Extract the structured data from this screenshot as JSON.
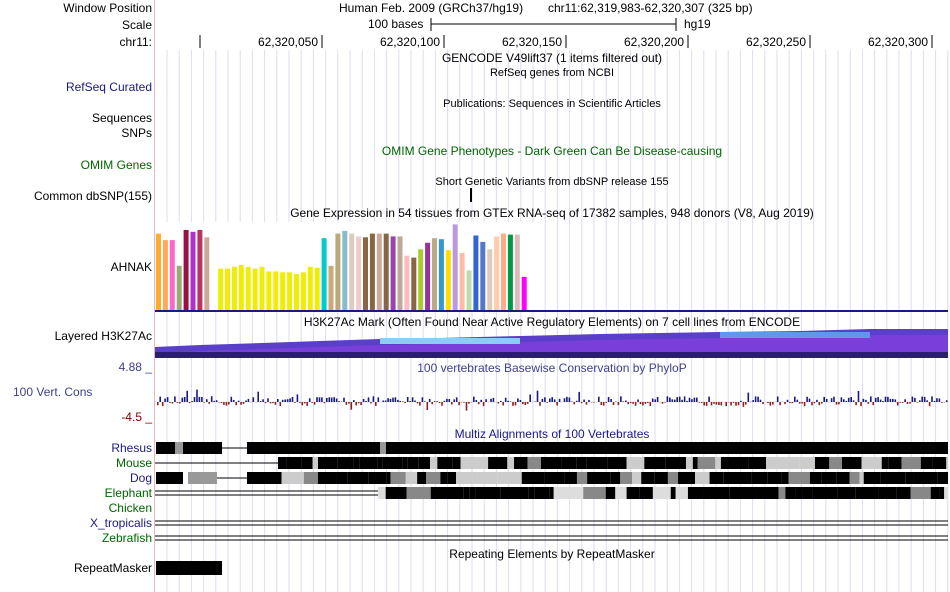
{
  "header": {
    "window_position_label": "Window Position",
    "assembly": "Human Feb. 2009 (GRCh37/hg19)",
    "position": "chr11:62,319,983-62,320,307 (325 bp)",
    "scale_label": "Scale",
    "scale_value": "100 bases",
    "scale_db": "hg19",
    "chrom_label": "chr11:",
    "ticks": [
      "62,320,050",
      "62,320,100",
      "62,320,150",
      "62,320,200",
      "62,320,250",
      "62,320,300"
    ]
  },
  "tracks": {
    "gencode": {
      "title": "GENCODE V49lift37 (1 items filtered out)"
    },
    "refseq": {
      "label": "RefSeq Curated",
      "title": "RefSeq genes from NCBI"
    },
    "publications": {
      "title": "Publications: Sequences in Scientific Articles"
    },
    "sequences": {
      "label": "Sequences"
    },
    "snps": {
      "label": "SNPs"
    },
    "omim": {
      "label": "OMIM Genes",
      "title": "OMIM Gene Phenotypes - Dark Green Can Be Disease-causing"
    },
    "dbsnp": {
      "label": "Common dbSNP(155)",
      "title": "Short Genetic Variants from dbSNP release 155"
    },
    "gtex": {
      "title": "Gene Expression in 54 tissues from GTEx RNA-seq of 17382 samples, 948 donors (V8, Aug 2019)",
      "gene": "AHNAK",
      "values": [
        0.83,
        0.76,
        0.76,
        0.48,
        0.87,
        0.85,
        0.87,
        0.79,
        0.75,
        0.45,
        0.45,
        0.47,
        0.49,
        0.47,
        0.45,
        0.47,
        0.42,
        0.42,
        0.41,
        0.41,
        0.39,
        0.41,
        0.47,
        0.46,
        0.78,
        0.48,
        0.83,
        0.86,
        0.83,
        0.8,
        0.79,
        0.83,
        0.83,
        0.83,
        0.8,
        0.8,
        0.59,
        0.57,
        0.66,
        0.73,
        0.78,
        0.77,
        0.65,
        0.93,
        0.62,
        0.43,
        0.81,
        0.74,
        0.66,
        0.8,
        0.83,
        0.82,
        0.82,
        0.36
      ],
      "colors": [
        "#ffaa33",
        "#ffaa55",
        "#ff66cc",
        "#99aa77",
        "#991144",
        "#aa33cc",
        "#bb3366",
        "#ccaa99",
        "#ffffff",
        "#eeee00",
        "#eeee00",
        "#eeee00",
        "#eeee00",
        "#eeee00",
        "#eeee00",
        "#eeee00",
        "#eeee00",
        "#eeee00",
        "#eeee00",
        "#eeee00",
        "#eeee00",
        "#eeee00",
        "#eeee00",
        "#eeee00",
        "#00cccc",
        "#ccaa77",
        "#bbaa77",
        "#88bbcc",
        "#ddccbb",
        "#eecccc",
        "#886644",
        "#886644",
        "#ccaa99",
        "#886644",
        "#9944aa",
        "#bbaa99",
        "#ffbbbb",
        "#886644",
        "#aacc33",
        "#993399",
        "#bbaa88",
        "#3399cc",
        "#ffdd00",
        "#bb99dd",
        "#ffbbaa",
        "#bbddaa",
        "#3366cc",
        "#5577cc",
        "#ddccbb",
        "#ffccaa",
        "#ffaa88",
        "#009944",
        "#ddbbbb",
        "#ff00ff"
      ]
    },
    "h3k27ac": {
      "label": "Layered H3K27Ac",
      "title": "H3K27Ac Mark (Often Found Near Active Regulatory Elements) on 7 cell lines from ENCODE"
    },
    "cons": {
      "label": "100 Vert. Cons",
      "title": "100 vertebrates Basewise Conservation by PhyloP",
      "max": "4.88 _",
      "min": "-4.5 _"
    },
    "multiz": {
      "title": "Multiz Alignments of 100 Vertebrates",
      "species": [
        {
          "name": "Rhesus",
          "color": "#1a1a80"
        },
        {
          "name": "Mouse",
          "color": "#006600"
        },
        {
          "name": "Dog",
          "color": "#1a1a80"
        },
        {
          "name": "Elephant",
          "color": "#006600"
        },
        {
          "name": "Chicken",
          "color": "#006600"
        },
        {
          "name": "X_tropicalis",
          "color": "#1a1a80"
        },
        {
          "name": "Zebrafish",
          "color": "#006600"
        }
      ]
    },
    "repeatmasker": {
      "label": "RepeatMasker",
      "title": "Repeating Elements by RepeatMasker"
    }
  }
}
